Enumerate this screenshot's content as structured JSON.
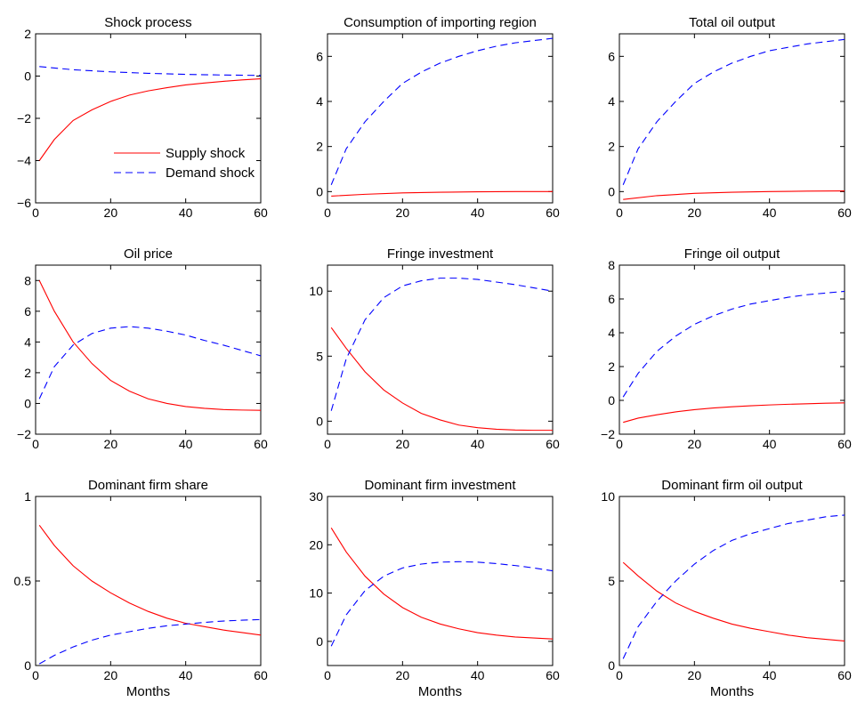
{
  "chart_data": [
    {
      "type": "line",
      "title": "Shock process",
      "xlabel": "",
      "xlim": [
        0,
        60
      ],
      "ylim": [
        -6,
        2
      ],
      "xticks": [
        0,
        20,
        40,
        60
      ],
      "yticks": [
        -6,
        -4,
        -2,
        0,
        2
      ],
      "ytick_labels": [
        "−6",
        "−4",
        "−2",
        "0",
        "2"
      ],
      "legend": {
        "placement": "lower-right",
        "entries": [
          "Supply shock",
          "Demand shock"
        ]
      },
      "series": [
        {
          "name": "Supply shock",
          "color": "#ff0000",
          "style": "solid",
          "x": [
            1,
            5,
            10,
            15,
            20,
            25,
            30,
            35,
            40,
            45,
            50,
            55,
            60
          ],
          "y": [
            -4.0,
            -3.0,
            -2.1,
            -1.6,
            -1.2,
            -0.9,
            -0.7,
            -0.55,
            -0.42,
            -0.33,
            -0.25,
            -0.18,
            -0.13
          ]
        },
        {
          "name": "Demand shock",
          "color": "#0000ff",
          "style": "dashed",
          "x": [
            1,
            10,
            20,
            30,
            40,
            50,
            60
          ],
          "y": [
            0.45,
            0.3,
            0.2,
            0.13,
            0.08,
            0.05,
            0.03
          ]
        }
      ]
    },
    {
      "type": "line",
      "title": "Consumption of importing region",
      "xlabel": "",
      "xlim": [
        0,
        60
      ],
      "ylim": [
        -0.5,
        7
      ],
      "xticks": [
        0,
        20,
        40,
        60
      ],
      "yticks": [
        0,
        2,
        4,
        6
      ],
      "ytick_labels": [
        "0",
        "2",
        "4",
        "6"
      ],
      "series": [
        {
          "color": "#ff0000",
          "style": "solid",
          "x": [
            1,
            10,
            20,
            30,
            40,
            50,
            60
          ],
          "y": [
            -0.2,
            -0.12,
            -0.06,
            -0.03,
            -0.01,
            0.0,
            0.0
          ]
        },
        {
          "color": "#0000ff",
          "style": "dashed",
          "x": [
            1,
            5,
            10,
            15,
            20,
            25,
            30,
            35,
            40,
            45,
            50,
            55,
            60
          ],
          "y": [
            0.3,
            1.9,
            3.1,
            4.0,
            4.8,
            5.3,
            5.7,
            6.0,
            6.25,
            6.45,
            6.6,
            6.7,
            6.8
          ]
        }
      ]
    },
    {
      "type": "line",
      "title": "Total oil output",
      "xlabel": "",
      "xlim": [
        0,
        60
      ],
      "ylim": [
        -0.5,
        7
      ],
      "xticks": [
        0,
        20,
        40,
        60
      ],
      "yticks": [
        0,
        2,
        4,
        6
      ],
      "ytick_labels": [
        "0",
        "2",
        "4",
        "6"
      ],
      "series": [
        {
          "color": "#ff0000",
          "style": "solid",
          "x": [
            1,
            10,
            20,
            30,
            40,
            50,
            60
          ],
          "y": [
            -0.35,
            -0.18,
            -0.08,
            -0.03,
            0.0,
            0.02,
            0.03
          ]
        },
        {
          "color": "#0000ff",
          "style": "dashed",
          "x": [
            1,
            5,
            10,
            15,
            20,
            25,
            30,
            35,
            40,
            45,
            50,
            55,
            60
          ],
          "y": [
            0.3,
            1.9,
            3.1,
            4.0,
            4.8,
            5.3,
            5.7,
            6.0,
            6.25,
            6.4,
            6.55,
            6.65,
            6.75
          ]
        }
      ]
    },
    {
      "type": "line",
      "title": "Oil price",
      "xlabel": "",
      "xlim": [
        0,
        60
      ],
      "ylim": [
        -2,
        9
      ],
      "xticks": [
        0,
        20,
        40,
        60
      ],
      "yticks": [
        -2,
        0,
        2,
        4,
        6,
        8
      ],
      "ytick_labels": [
        "−2",
        "0",
        "2",
        "4",
        "6",
        "8"
      ],
      "series": [
        {
          "color": "#ff0000",
          "style": "solid",
          "x": [
            1,
            5,
            10,
            15,
            20,
            25,
            30,
            35,
            40,
            45,
            50,
            55,
            60
          ],
          "y": [
            8.0,
            6.0,
            4.0,
            2.6,
            1.5,
            0.8,
            0.3,
            0.0,
            -0.2,
            -0.32,
            -0.4,
            -0.43,
            -0.45
          ]
        },
        {
          "color": "#0000ff",
          "style": "dashed",
          "x": [
            1,
            5,
            10,
            15,
            20,
            25,
            30,
            35,
            40,
            45,
            50,
            55,
            60
          ],
          "y": [
            0.3,
            2.4,
            3.8,
            4.55,
            4.9,
            5.0,
            4.9,
            4.7,
            4.45,
            4.1,
            3.8,
            3.45,
            3.1
          ]
        }
      ]
    },
    {
      "type": "line",
      "title": "Fringe investment",
      "xlabel": "",
      "xlim": [
        0,
        60
      ],
      "ylim": [
        -1,
        12
      ],
      "xticks": [
        0,
        20,
        40,
        60
      ],
      "yticks": [
        0,
        5,
        10
      ],
      "ytick_labels": [
        "0",
        "5",
        "10"
      ],
      "series": [
        {
          "color": "#ff0000",
          "style": "solid",
          "x": [
            1,
            5,
            10,
            15,
            20,
            25,
            30,
            35,
            40,
            45,
            50,
            55,
            60
          ],
          "y": [
            7.2,
            5.6,
            3.8,
            2.4,
            1.4,
            0.6,
            0.1,
            -0.3,
            -0.5,
            -0.62,
            -0.68,
            -0.7,
            -0.7
          ]
        },
        {
          "color": "#0000ff",
          "style": "dashed",
          "x": [
            1,
            5,
            10,
            15,
            20,
            25,
            30,
            35,
            40,
            45,
            50,
            55,
            60
          ],
          "y": [
            0.8,
            4.8,
            7.8,
            9.5,
            10.4,
            10.8,
            11.0,
            11.0,
            10.9,
            10.7,
            10.5,
            10.25,
            10.0
          ]
        }
      ]
    },
    {
      "type": "line",
      "title": "Fringe oil output",
      "xlabel": "",
      "xlim": [
        0,
        60
      ],
      "ylim": [
        -2,
        8
      ],
      "xticks": [
        0,
        20,
        40,
        60
      ],
      "yticks": [
        -2,
        0,
        2,
        4,
        6,
        8
      ],
      "ytick_labels": [
        "−2",
        "0",
        "2",
        "4",
        "6",
        "8"
      ],
      "series": [
        {
          "color": "#ff0000",
          "style": "solid",
          "x": [
            1,
            5,
            10,
            15,
            20,
            25,
            30,
            35,
            40,
            45,
            50,
            55,
            60
          ],
          "y": [
            -1.3,
            -1.05,
            -0.85,
            -0.68,
            -0.55,
            -0.45,
            -0.38,
            -0.32,
            -0.27,
            -0.23,
            -0.2,
            -0.17,
            -0.15
          ]
        },
        {
          "color": "#0000ff",
          "style": "dashed",
          "x": [
            1,
            5,
            10,
            15,
            20,
            25,
            30,
            35,
            40,
            45,
            50,
            55,
            60
          ],
          "y": [
            0.2,
            1.6,
            2.9,
            3.8,
            4.5,
            5.0,
            5.4,
            5.7,
            5.9,
            6.1,
            6.25,
            6.35,
            6.45
          ]
        }
      ]
    },
    {
      "type": "line",
      "title": "Dominant firm share",
      "xlabel": "Months",
      "xlim": [
        0,
        60
      ],
      "ylim": [
        0,
        1
      ],
      "xticks": [
        0,
        20,
        40,
        60
      ],
      "yticks": [
        0,
        0.5,
        1
      ],
      "ytick_labels": [
        "0",
        "0.5",
        "1"
      ],
      "series": [
        {
          "color": "#ff0000",
          "style": "solid",
          "x": [
            1,
            5,
            10,
            15,
            20,
            25,
            30,
            35,
            40,
            45,
            50,
            55,
            60
          ],
          "y": [
            0.83,
            0.71,
            0.59,
            0.5,
            0.43,
            0.37,
            0.32,
            0.28,
            0.25,
            0.23,
            0.21,
            0.195,
            0.18
          ]
        },
        {
          "color": "#0000ff",
          "style": "dashed",
          "x": [
            1,
            5,
            10,
            15,
            20,
            25,
            30,
            35,
            40,
            45,
            50,
            55,
            60
          ],
          "y": [
            0.01,
            0.06,
            0.11,
            0.15,
            0.18,
            0.2,
            0.22,
            0.235,
            0.245,
            0.255,
            0.263,
            0.268,
            0.272
          ]
        }
      ]
    },
    {
      "type": "line",
      "title": "Dominant firm investment",
      "xlabel": "Months",
      "xlim": [
        0,
        60
      ],
      "ylim": [
        -5,
        30
      ],
      "xticks": [
        0,
        20,
        40,
        60
      ],
      "yticks": [
        0,
        10,
        20,
        30
      ],
      "ytick_labels": [
        "0",
        "10",
        "20",
        "30"
      ],
      "series": [
        {
          "color": "#ff0000",
          "style": "solid",
          "x": [
            1,
            5,
            10,
            15,
            20,
            25,
            30,
            35,
            40,
            45,
            50,
            55,
            60
          ],
          "y": [
            23.5,
            18.5,
            13.5,
            9.8,
            7.0,
            5.0,
            3.6,
            2.6,
            1.8,
            1.3,
            0.9,
            0.7,
            0.5
          ]
        },
        {
          "color": "#0000ff",
          "style": "dashed",
          "x": [
            1,
            5,
            10,
            15,
            20,
            25,
            30,
            35,
            40,
            45,
            50,
            55,
            60
          ],
          "y": [
            -1.0,
            5.5,
            10.5,
            13.5,
            15.2,
            16.0,
            16.4,
            16.5,
            16.4,
            16.1,
            15.7,
            15.2,
            14.6
          ]
        }
      ]
    },
    {
      "type": "line",
      "title": "Dominant firm oil output",
      "xlabel": "Months",
      "xlim": [
        0,
        60
      ],
      "ylim": [
        0,
        10
      ],
      "xticks": [
        0,
        20,
        40,
        60
      ],
      "yticks": [
        0,
        5,
        10
      ],
      "ytick_labels": [
        "0",
        "5",
        "10"
      ],
      "series": [
        {
          "color": "#ff0000",
          "style": "solid",
          "x": [
            1,
            5,
            10,
            15,
            20,
            25,
            30,
            35,
            40,
            45,
            50,
            55,
            60
          ],
          "y": [
            6.1,
            5.3,
            4.4,
            3.7,
            3.2,
            2.8,
            2.45,
            2.2,
            2.0,
            1.8,
            1.65,
            1.55,
            1.45
          ]
        },
        {
          "color": "#0000ff",
          "style": "dashed",
          "x": [
            1,
            5,
            10,
            15,
            20,
            25,
            30,
            35,
            40,
            45,
            50,
            55,
            60
          ],
          "y": [
            0.4,
            2.3,
            3.8,
            5.0,
            6.0,
            6.8,
            7.4,
            7.8,
            8.1,
            8.4,
            8.6,
            8.8,
            8.9
          ]
        }
      ]
    }
  ]
}
